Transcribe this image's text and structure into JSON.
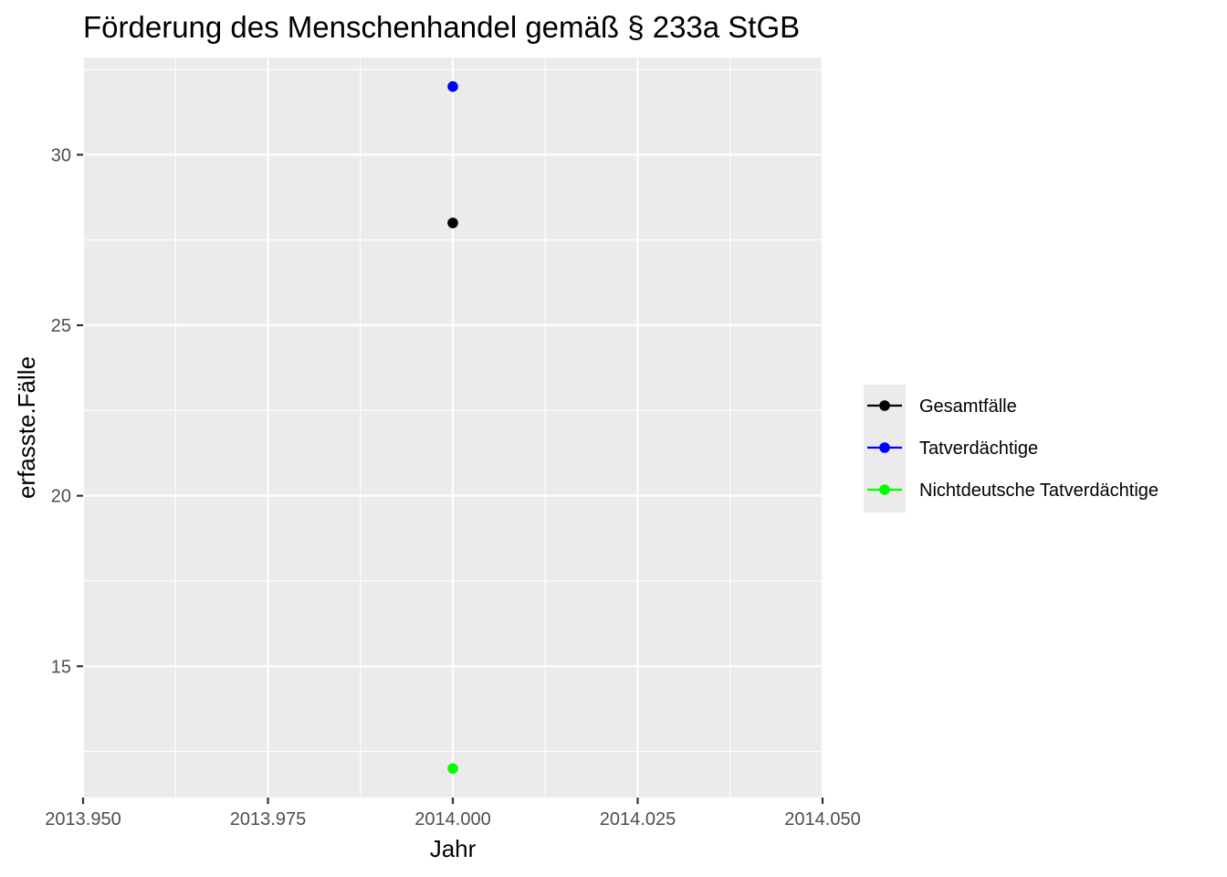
{
  "chart_data": {
    "type": "scatter",
    "title": "Förderung des Menschenhandel gemäß § 233a StGB",
    "xlabel": "Jahr",
    "ylabel": "erfasste.Fälle",
    "xlim": [
      2013.95,
      2014.05
    ],
    "ylim": [
      11.15,
      32.85
    ],
    "x_ticks": [
      2013.95,
      2013.975,
      2014.0,
      2014.025,
      2014.05
    ],
    "x_tick_labels": [
      "2013.950",
      "2013.975",
      "2014.000",
      "2014.025",
      "2014.050"
    ],
    "y_ticks": [
      15,
      20,
      25,
      30
    ],
    "y_tick_labels": [
      "15",
      "20",
      "25",
      "30"
    ],
    "grid": true,
    "legend_position": "right",
    "background": "#ebebeb",
    "series": [
      {
        "name": "Gesamtfälle",
        "color": "#000000",
        "x": [
          2014.0
        ],
        "values": [
          28
        ]
      },
      {
        "name": "Tatverdächtige",
        "color": "#0000ff",
        "x": [
          2014.0
        ],
        "values": [
          32
        ]
      },
      {
        "name": "Nichtdeutsche Tatverdächtige",
        "color": "#00ff00",
        "x": [
          2014.0
        ],
        "values": [
          12
        ]
      }
    ]
  }
}
